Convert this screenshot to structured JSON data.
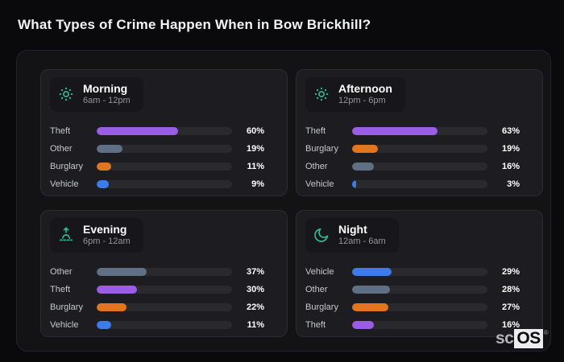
{
  "page": {
    "title": "What Types of Crime Happen When in Bow Brickhill?"
  },
  "brand": {
    "prefix": "sc",
    "box": "OS",
    "mark": "®"
  },
  "colors": {
    "theft": "#9b5ce6",
    "other": "#5f7084",
    "burglary": "#e2761f",
    "vehicle": "#3b7ce8",
    "accent": "#2fbd8f",
    "track": "#29292e"
  },
  "chart_data": [
    {
      "type": "bar",
      "orientation": "horizontal",
      "icon": "sun-icon",
      "title": "Morning",
      "subtitle": "6am - 12pm",
      "unit": "%",
      "xlim": [
        0,
        100
      ],
      "categories": [
        "Theft",
        "Other",
        "Burglary",
        "Vehicle"
      ],
      "values": [
        60,
        19,
        11,
        9
      ]
    },
    {
      "type": "bar",
      "orientation": "horizontal",
      "icon": "sun-icon",
      "title": "Afternoon",
      "subtitle": "12pm - 6pm",
      "unit": "%",
      "xlim": [
        0,
        100
      ],
      "categories": [
        "Theft",
        "Burglary",
        "Other",
        "Vehicle"
      ],
      "values": [
        63,
        19,
        16,
        3
      ]
    },
    {
      "type": "bar",
      "orientation": "horizontal",
      "icon": "sunrise-icon",
      "title": "Evening",
      "subtitle": "6pm - 12am",
      "unit": "%",
      "xlim": [
        0,
        100
      ],
      "categories": [
        "Other",
        "Theft",
        "Burglary",
        "Vehicle"
      ],
      "values": [
        37,
        30,
        22,
        11
      ]
    },
    {
      "type": "bar",
      "orientation": "horizontal",
      "icon": "moon-icon",
      "title": "Night",
      "subtitle": "12am - 6am",
      "unit": "%",
      "xlim": [
        0,
        100
      ],
      "categories": [
        "Vehicle",
        "Other",
        "Burglary",
        "Theft"
      ],
      "values": [
        29,
        28,
        27,
        16
      ]
    }
  ]
}
